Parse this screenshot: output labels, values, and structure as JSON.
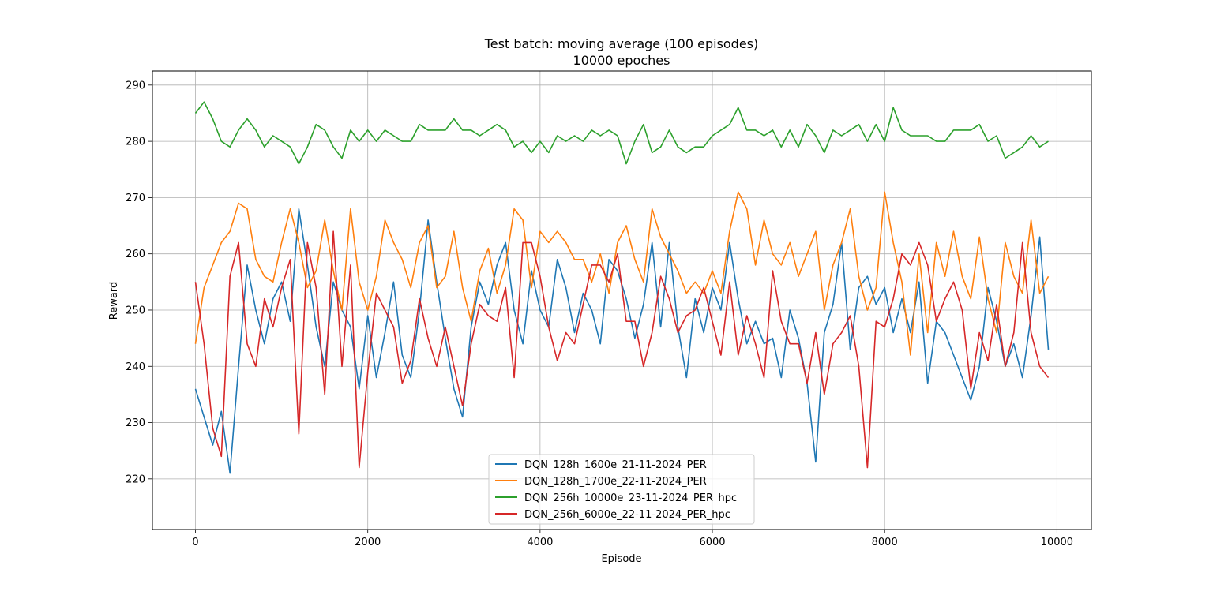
{
  "chart_data": {
    "type": "line",
    "title": "Test batch: moving average (100 episodes)",
    "subtitle": "10000 epoches",
    "xlabel": "Episode",
    "ylabel": "Reward",
    "xlim": [
      -500,
      10400
    ],
    "ylim": [
      211,
      292.5
    ],
    "xticks": [
      0,
      2000,
      4000,
      6000,
      8000,
      10000
    ],
    "yticks": [
      220,
      230,
      240,
      250,
      260,
      270,
      280,
      290
    ],
    "grid": true,
    "legend_position": "lower center",
    "x": [
      0,
      100,
      200,
      300,
      400,
      500,
      600,
      700,
      800,
      900,
      1000,
      1100,
      1200,
      1300,
      1400,
      1500,
      1600,
      1700,
      1800,
      1900,
      2000,
      2100,
      2200,
      2300,
      2400,
      2500,
      2600,
      2700,
      2800,
      2900,
      3000,
      3100,
      3200,
      3300,
      3400,
      3500,
      3600,
      3700,
      3800,
      3900,
      4000,
      4100,
      4200,
      4300,
      4400,
      4500,
      4600,
      4700,
      4800,
      4900,
      5000,
      5100,
      5200,
      5300,
      5400,
      5500,
      5600,
      5700,
      5800,
      5900,
      6000,
      6100,
      6200,
      6300,
      6400,
      6500,
      6600,
      6700,
      6800,
      6900,
      7000,
      7100,
      7200,
      7300,
      7400,
      7500,
      7600,
      7700,
      7800,
      7900,
      8000,
      8100,
      8200,
      8300,
      8400,
      8500,
      8600,
      8700,
      8800,
      8900,
      9000,
      9100,
      9200,
      9300,
      9400,
      9500,
      9600,
      9700,
      9800,
      9900
    ],
    "series": [
      {
        "name": "DQN_128h_1600e_21-11-2024_PER",
        "color": "#1f77b4",
        "values": [
          236,
          231,
          226,
          232,
          221,
          240,
          258,
          250,
          244,
          252,
          255,
          248,
          268,
          258,
          247,
          240,
          255,
          250,
          247,
          236,
          249,
          238,
          246,
          255,
          242,
          238,
          250,
          266,
          255,
          245,
          236,
          231,
          247,
          255,
          251,
          258,
          262,
          250,
          244,
          257,
          250,
          247,
          259,
          254,
          246,
          253,
          250,
          244,
          259,
          257,
          252,
          245,
          251,
          262,
          247,
          262,
          247,
          238,
          252,
          246,
          254,
          250,
          262,
          252,
          244,
          248,
          244,
          245,
          238,
          250,
          245,
          237,
          223,
          246,
          251,
          262,
          243,
          254,
          256,
          251,
          254,
          246,
          252,
          246,
          255,
          237,
          248,
          246,
          242,
          238,
          234,
          240,
          254,
          248,
          240,
          244,
          238,
          249,
          263,
          243
        ]
      },
      {
        "name": "DQN_128h_1700e_22-11-2024_PER",
        "color": "#ff7f0e",
        "values": [
          244,
          254,
          258,
          262,
          264,
          269,
          268,
          259,
          256,
          255,
          262,
          268,
          262,
          254,
          257,
          266,
          257,
          250,
          268,
          255,
          250,
          256,
          266,
          262,
          259,
          254,
          262,
          265,
          254,
          256,
          264,
          254,
          248,
          257,
          261,
          253,
          258,
          268,
          266,
          254,
          264,
          262,
          264,
          262,
          259,
          259,
          255,
          260,
          253,
          262,
          265,
          259,
          255,
          268,
          263,
          260,
          257,
          253,
          255,
          253,
          257,
          253,
          264,
          271,
          268,
          258,
          266,
          260,
          258,
          262,
          256,
          260,
          264,
          250,
          258,
          262,
          268,
          256,
          250,
          254,
          271,
          262,
          255,
          242,
          260,
          246,
          262,
          256,
          264,
          256,
          252,
          263,
          252,
          246,
          262,
          256,
          253,
          266,
          253,
          256
        ]
      },
      {
        "name": "DQN_256h_10000e_23-11-2024_PER_hpc",
        "color": "#2ca02c",
        "values": [
          285,
          287,
          284,
          280,
          279,
          282,
          284,
          282,
          279,
          281,
          280,
          279,
          276,
          279,
          283,
          282,
          279,
          277,
          282,
          280,
          282,
          280,
          282,
          281,
          280,
          280,
          283,
          282,
          282,
          282,
          284,
          282,
          282,
          281,
          282,
          283,
          282,
          279,
          280,
          278,
          280,
          278,
          281,
          280,
          281,
          280,
          282,
          281,
          282,
          281,
          276,
          280,
          283,
          278,
          279,
          282,
          279,
          278,
          279,
          279,
          281,
          282,
          283,
          286,
          282,
          282,
          281,
          282,
          279,
          282,
          279,
          283,
          281,
          278,
          282,
          281,
          282,
          283,
          280,
          283,
          280,
          286,
          282,
          281,
          281,
          281,
          280,
          280,
          282,
          282,
          282,
          283,
          280,
          281,
          277,
          278,
          279,
          281,
          279,
          280
        ]
      },
      {
        "name": "DQN_256h_6000e_22-11-2024_PER_hpc",
        "color": "#d62728",
        "values": [
          255,
          244,
          229,
          224,
          256,
          262,
          244,
          240,
          252,
          247,
          254,
          259,
          228,
          262,
          254,
          235,
          264,
          240,
          258,
          222,
          239,
          253,
          250,
          247,
          237,
          241,
          252,
          245,
          240,
          247,
          240,
          233,
          244,
          251,
          249,
          248,
          254,
          238,
          262,
          262,
          256,
          247,
          241,
          246,
          244,
          251,
          258,
          258,
          255,
          260,
          248,
          248,
          240,
          246,
          256,
          252,
          246,
          249,
          250,
          254,
          248,
          242,
          255,
          242,
          249,
          244,
          238,
          257,
          248,
          244,
          244,
          237,
          246,
          235,
          244,
          246,
          249,
          240,
          222,
          248,
          247,
          252,
          260,
          258,
          262,
          258,
          248,
          252,
          255,
          250,
          236,
          246,
          241,
          251,
          240,
          246,
          262,
          246,
          240,
          238
        ]
      }
    ]
  }
}
